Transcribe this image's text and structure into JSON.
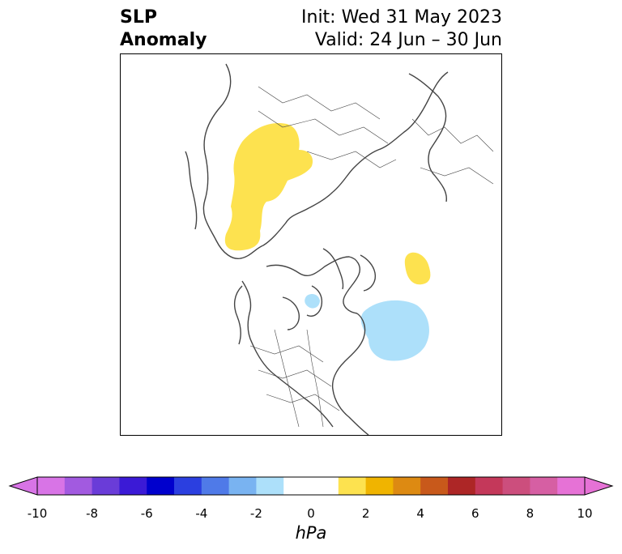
{
  "header": {
    "title_line1": "SLP",
    "title_line2": "Anomaly",
    "init_text": "Init: Wed 31 May 2023",
    "valid_text": "Valid: 24 Jun – 30 Jun"
  },
  "map": {
    "projection": "north-polar-stereographic",
    "coastline_color": "#444444",
    "anomalies": [
      {
        "region": "central-siberia",
        "sign": "positive",
        "bin": "1 to 2 hPa",
        "color": "#fde24f"
      },
      {
        "region": "svalbard-barents",
        "sign": "positive",
        "bin": "1 to 2 hPa",
        "color": "#fde24f"
      },
      {
        "region": "north-atlantic-labrador-sea",
        "sign": "negative",
        "bin": "-2 to -1 hPa",
        "color": "#ade0fa"
      },
      {
        "region": "hudson-bay",
        "sign": "negative",
        "bin": "-2 to -1 hPa",
        "color": "#ade0fa"
      }
    ]
  },
  "colorbar": {
    "unit": "hPa",
    "extend": "both",
    "colors": [
      "#d874e6",
      "#a25ae0",
      "#6a3cd8",
      "#3b1ad6",
      "#0000cd",
      "#2b3fe0",
      "#4f7ae8",
      "#79b3f1",
      "#ade0fa",
      "#ffffff",
      "#ffffff",
      "#fde24f",
      "#f0b400",
      "#dd8a12",
      "#c8591b",
      "#ad2626",
      "#c4385a",
      "#cc4e7d",
      "#d65fa3",
      "#e672d6"
    ],
    "left_extend_color": "#d874e6",
    "right_extend_color": "#e672d6",
    "tick_labels": [
      "-10",
      "-8",
      "-6",
      "-4",
      "-2",
      "0",
      "2",
      "4",
      "6",
      "8",
      "10"
    ]
  }
}
